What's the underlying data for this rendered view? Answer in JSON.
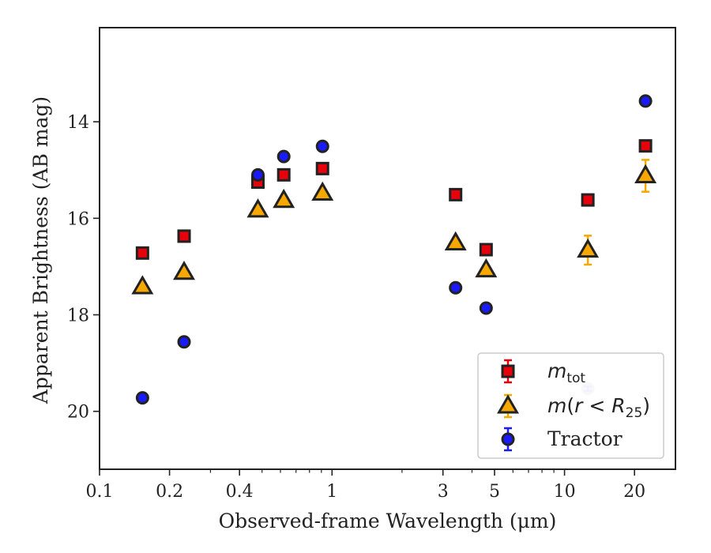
{
  "chart_data": {
    "type": "scatter",
    "xscale": "log",
    "xlim": [
      0.1,
      30
    ],
    "ylim": [
      21.2,
      12.05
    ],
    "y_inverted": true,
    "xlabel": "Observed-frame Wavelength (μm)",
    "ylabel": "Apparent Brightness (AB mag)",
    "x_ticks": [
      0.1,
      0.2,
      0.4,
      1,
      3,
      5,
      10,
      20
    ],
    "x_tick_labels": [
      "0.1",
      "0.2",
      "0.4",
      "1",
      "3",
      "5",
      "10",
      "20"
    ],
    "y_ticks": [
      14,
      16,
      18,
      20
    ],
    "y_tick_labels": [
      "14",
      "16",
      "18",
      "20"
    ],
    "legend_position": "lower right",
    "grid": false,
    "series": [
      {
        "name": "m_tot",
        "marker": "square",
        "color": "#e8000b",
        "errcolor": "#e8000b",
        "points": [
          {
            "x": 0.153,
            "y": 16.72,
            "err": 0.05
          },
          {
            "x": 0.231,
            "y": 16.37,
            "err": 0.05
          },
          {
            "x": 0.48,
            "y": 15.25,
            "err": 0.05
          },
          {
            "x": 0.62,
            "y": 15.1,
            "err": 0.05
          },
          {
            "x": 0.91,
            "y": 14.97,
            "err": 0.05
          },
          {
            "x": 3.4,
            "y": 15.51,
            "err": 0.05
          },
          {
            "x": 4.6,
            "y": 16.65,
            "err": 0.05
          },
          {
            "x": 12.6,
            "y": 15.62,
            "err": 0.05
          },
          {
            "x": 22.3,
            "y": 14.5,
            "err": 0.05
          }
        ]
      },
      {
        "name": "m(r < R25)",
        "marker": "triangle",
        "color": "#f6a800",
        "errcolor": "#f6a800",
        "points": [
          {
            "x": 0.153,
            "y": 17.42,
            "err": 0.05
          },
          {
            "x": 0.231,
            "y": 17.12,
            "err": 0.05
          },
          {
            "x": 0.48,
            "y": 15.83,
            "err": 0.05
          },
          {
            "x": 0.62,
            "y": 15.63,
            "err": 0.05
          },
          {
            "x": 0.91,
            "y": 15.48,
            "err": 0.05
          },
          {
            "x": 3.4,
            "y": 16.51,
            "err": 0.05
          },
          {
            "x": 4.6,
            "y": 17.07,
            "err": 0.05
          },
          {
            "x": 12.6,
            "y": 16.66,
            "err": 0.3
          },
          {
            "x": 22.3,
            "y": 15.12,
            "err": 0.33
          }
        ]
      },
      {
        "name": "Tractor",
        "marker": "circle",
        "color": "#1a1aff",
        "errcolor": "#1a1aff",
        "points": [
          {
            "x": 0.153,
            "y": 19.72,
            "err": 0.08
          },
          {
            "x": 0.231,
            "y": 18.56,
            "err": 0.08
          },
          {
            "x": 0.48,
            "y": 15.1,
            "err": 0.05
          },
          {
            "x": 0.62,
            "y": 14.72,
            "err": 0.05
          },
          {
            "x": 0.91,
            "y": 14.51,
            "err": 0.05
          },
          {
            "x": 3.4,
            "y": 17.44,
            "err": 0.05
          },
          {
            "x": 4.6,
            "y": 17.86,
            "err": 0.05
          },
          {
            "x": 12.6,
            "y": 19.53,
            "err": 0.05,
            "faint": true
          },
          {
            "x": 22.3,
            "y": 13.57,
            "err": 0.05
          }
        ]
      }
    ]
  }
}
